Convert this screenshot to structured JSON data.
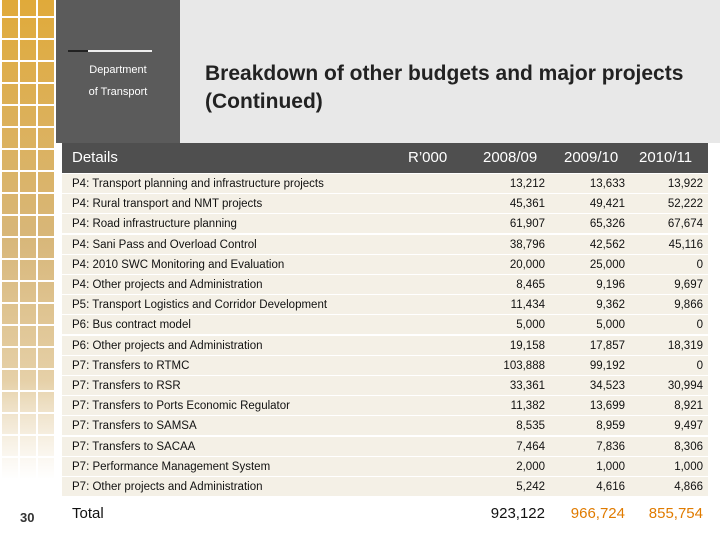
{
  "header": {
    "department": "Department",
    "org": "of Transport",
    "title": "Breakdown of other budgets and major projects (Continued)"
  },
  "table": {
    "columns": [
      "Details",
      "R’000",
      "2008/09",
      "2009/10",
      "2010/11"
    ],
    "rows": [
      [
        "P4: Transport planning and infrastructure projects",
        "13,212",
        "13,633",
        "13,922"
      ],
      [
        "P4: Rural transport and NMT projects",
        "45,361",
        "49,421",
        "52,222"
      ],
      [
        "P4: Road infrastructure planning",
        "61,907",
        "65,326",
        "67,674"
      ],
      [
        "P4: Sani Pass and Overload Control",
        "38,796",
        "42,562",
        "45,116"
      ],
      [
        "P4: 2010 SWC Monitoring and Evaluation",
        "20,000",
        "25,000",
        "0"
      ],
      [
        "P4: Other projects and Administration",
        "8,465",
        "9,196",
        "9,697"
      ],
      [
        "P5: Transport Logistics and Corridor Development",
        "11,434",
        "9,362",
        "9,866"
      ],
      [
        "P6: Bus contract model",
        "5,000",
        "5,000",
        "0"
      ],
      [
        "P6: Other projects and Administration",
        "19,158",
        "17,857",
        "18,319"
      ],
      [
        "P7: Transfers to RTMC",
        "103,888",
        "99,192",
        "0"
      ],
      [
        "P7: Transfers to RSR",
        "33,361",
        "34,523",
        "30,994"
      ],
      [
        "P7: Transfers to Ports Economic Regulator",
        "11,382",
        "13,699",
        "8,921"
      ],
      [
        "P7: Transfers to SAMSA",
        "8,535",
        "8,959",
        "9,497"
      ],
      [
        "P7: Transfers to SACAA",
        "7,464",
        "7,836",
        "8,306"
      ],
      [
        "P7: Performance Management System",
        "2,000",
        "1,000",
        "1,000"
      ],
      [
        "P7: Other projects and Administration",
        "5,242",
        "4,616",
        "4,866"
      ]
    ],
    "total": [
      "Total",
      "923,122",
      "966,724",
      "855,754"
    ]
  },
  "page_number": "30"
}
